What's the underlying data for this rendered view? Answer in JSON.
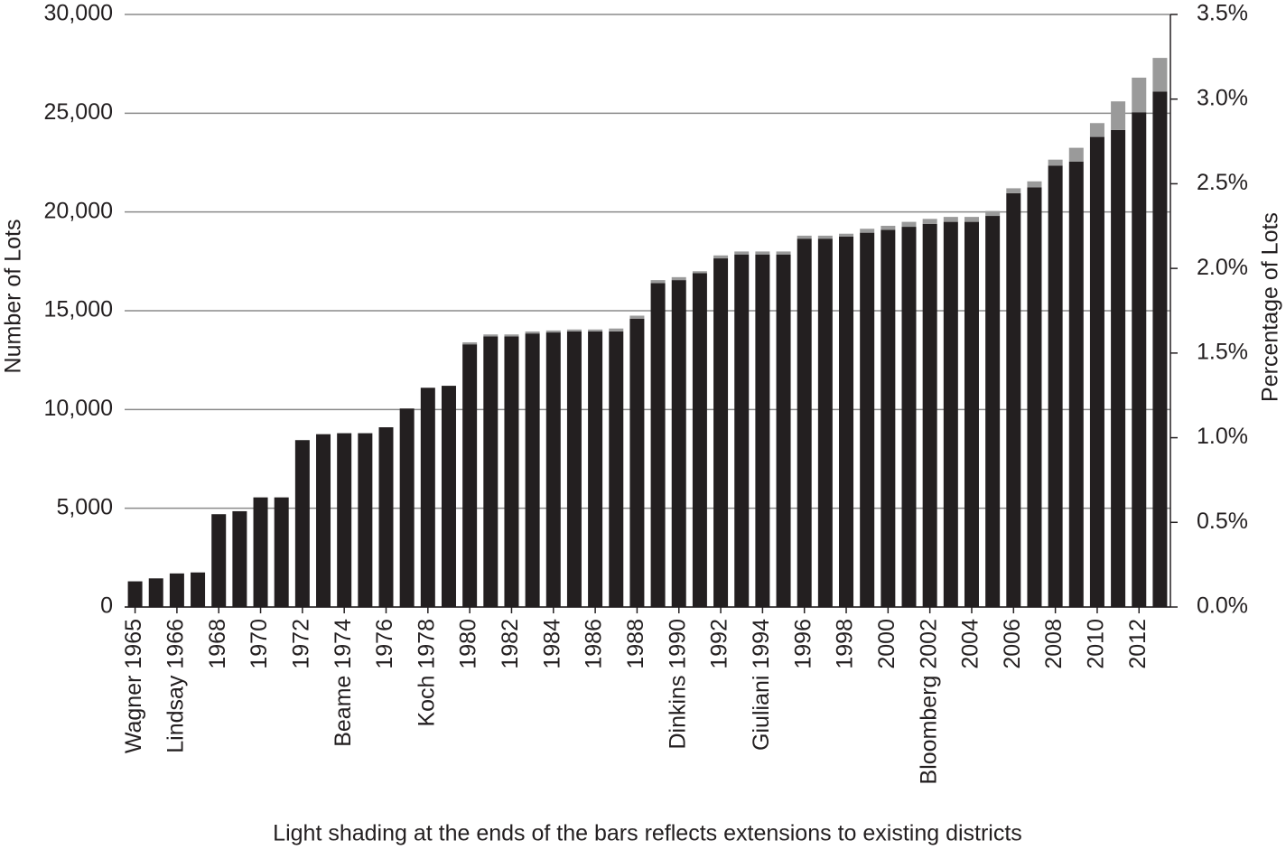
{
  "chart_data": {
    "type": "stacked_bar",
    "y_axis_label": "Number of Lots",
    "y2_axis_label": "Percentage of Lots",
    "annotation": "Light shading at the ends of the bars reflects extensions to existing districts",
    "categories": [
      "Wagner 1965",
      null,
      "Lindsay 1966",
      null,
      "1968",
      null,
      "1970",
      null,
      "1972",
      null,
      "Beame 1974",
      null,
      "1976",
      null,
      "Koch 1978",
      null,
      "1980",
      null,
      "1982",
      null,
      "1984",
      null,
      "1986",
      null,
      "1988",
      null,
      "Dinkins 1990",
      null,
      "1992",
      null,
      "Giuliani 1994",
      null,
      "1996",
      null,
      "1998",
      null,
      "2000",
      null,
      "Bloomberg 2002",
      null,
      "2004",
      null,
      "2006",
      null,
      "2008",
      null,
      "2010",
      null,
      "2012",
      null
    ],
    "series": [
      {
        "color": "#231f20",
        "values": [
          1300,
          1450,
          1700,
          1750,
          4700,
          4850,
          5550,
          5550,
          8450,
          8750,
          8800,
          8800,
          9100,
          10050,
          11100,
          11200,
          13300,
          13700,
          13700,
          13850,
          13900,
          13950,
          13950,
          13950,
          14600,
          16400,
          16550,
          16900,
          17650,
          17850,
          17850,
          17850,
          18650,
          18650,
          18750,
          18950,
          19100,
          19250,
          19400,
          19500,
          19500,
          19800,
          20950,
          21250,
          22350,
          22550,
          23800,
          24150,
          25050,
          26100
        ]
      },
      {
        "color": "#9a9a9a",
        "values": [
          0,
          0,
          0,
          0,
          0,
          0,
          0,
          0,
          0,
          0,
          0,
          0,
          0,
          0,
          0,
          0,
          100,
          100,
          100,
          100,
          100,
          100,
          100,
          150,
          150,
          150,
          150,
          100,
          150,
          150,
          150,
          150,
          150,
          150,
          150,
          200,
          200,
          250,
          250,
          250,
          250,
          250,
          250,
          300,
          300,
          700,
          700,
          1450,
          1750,
          1700
        ]
      }
    ],
    "ylim": [
      0,
      30000
    ],
    "yticks": [
      0,
      {
        "value": 5000,
        "label": "5,000"
      },
      {
        "value": 10000,
        "label": "10,000"
      },
      {
        "value": 15000,
        "label": "15,000"
      },
      {
        "value": 20000,
        "label": "20,000"
      },
      {
        "value": 25000,
        "label": "25,000"
      },
      {
        "value": 30000,
        "label": "30,000"
      }
    ],
    "y2lim": [
      0,
      3.5
    ],
    "y2ticks": [
      {
        "value": 0,
        "label": "0.0%"
      },
      {
        "value": 0.5,
        "label": "0.5%"
      },
      {
        "value": 1,
        "label": "1.0%"
      },
      {
        "value": 1.5,
        "label": "1.5%"
      },
      {
        "value": 2,
        "label": "2.0%"
      },
      {
        "value": 2.5,
        "label": "2.5%"
      },
      {
        "value": 3,
        "label": "3.0%"
      },
      {
        "value": 3.5,
        "label": "3.5%"
      }
    ],
    "grid": true
  }
}
